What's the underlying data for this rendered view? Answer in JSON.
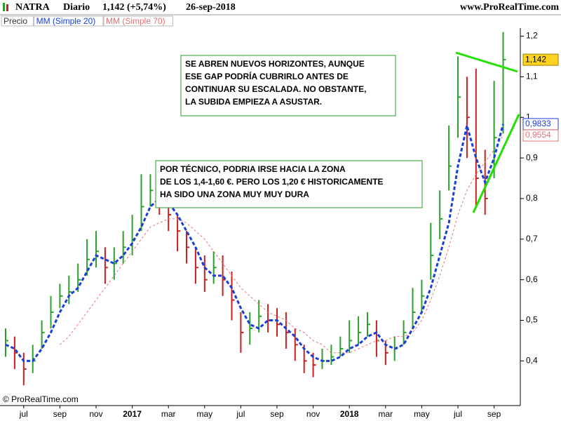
{
  "chart_data": {
    "type": "candlestick",
    "title": "NATRA",
    "period": "Diario",
    "last_change": "1,142 (+5,74%)",
    "date": "26-sep-2018",
    "source": "www.ProRealTime.com",
    "copyright": "© ProRealTime.com",
    "categories": [
      null,
      null,
      "jul",
      null,
      null,
      null,
      "sep",
      null,
      null,
      null,
      "nov",
      null,
      null,
      null,
      "2017",
      null,
      null,
      null,
      "mar",
      null,
      null,
      null,
      "may",
      null,
      null,
      null,
      "jul",
      null,
      null,
      null,
      "sep",
      null,
      null,
      null,
      "nov",
      null,
      null,
      null,
      "2018",
      null,
      null,
      null,
      "mar",
      null,
      null,
      null,
      "may",
      null,
      null,
      null,
      "jul",
      null,
      null,
      null,
      "sep",
      null
    ],
    "series": [
      {
        "name": "Precio",
        "up_color": "#2ca02c",
        "down_color": "#cc1f1f",
        "high": [
          0.48,
          0.46,
          0.42,
          0.44,
          0.5,
          0.56,
          0.59,
          0.61,
          0.64,
          0.7,
          0.72,
          0.68,
          0.68,
          0.72,
          0.76,
          0.86,
          0.86,
          0.84,
          0.8,
          0.76,
          0.72,
          0.68,
          0.66,
          0.67,
          0.66,
          0.62,
          0.52,
          0.52,
          0.55,
          0.54,
          0.53,
          0.52,
          0.48,
          0.44,
          0.42,
          0.43,
          0.44,
          0.46,
          0.5,
          0.51,
          0.52,
          0.5,
          0.45,
          0.46,
          0.5,
          0.58,
          0.6,
          0.74,
          0.82,
          0.98,
          1.15,
          1.1,
          1.12,
          0.92,
          1.09,
          1.21
        ],
        "low": [
          0.41,
          0.38,
          0.34,
          0.37,
          0.43,
          0.48,
          0.53,
          0.54,
          0.57,
          0.61,
          0.63,
          0.59,
          0.6,
          0.64,
          0.66,
          0.72,
          0.78,
          0.76,
          0.72,
          0.67,
          0.64,
          0.59,
          0.57,
          0.59,
          0.56,
          0.5,
          0.42,
          0.44,
          0.47,
          0.47,
          0.46,
          0.43,
          0.4,
          0.37,
          0.36,
          0.38,
          0.39,
          0.41,
          0.42,
          0.44,
          0.46,
          0.41,
          0.39,
          0.4,
          0.44,
          0.48,
          0.52,
          0.6,
          0.7,
          0.82,
          0.95,
          0.9,
          0.78,
          0.76,
          0.85,
          0.96
        ],
        "values": [
          0.45,
          0.42,
          0.38,
          0.4,
          0.47,
          0.52,
          0.56,
          0.57,
          0.6,
          0.65,
          0.67,
          0.63,
          0.64,
          0.68,
          0.7,
          0.78,
          0.82,
          0.8,
          0.76,
          0.72,
          0.68,
          0.63,
          0.6,
          0.63,
          0.6,
          0.55,
          0.47,
          0.48,
          0.51,
          0.5,
          0.49,
          0.47,
          0.44,
          0.4,
          0.39,
          0.4,
          0.41,
          0.43,
          0.45,
          0.47,
          0.49,
          0.45,
          0.42,
          0.43,
          0.47,
          0.52,
          0.56,
          0.66,
          0.75,
          0.88,
          1.05,
          1.0,
          0.85,
          0.8,
          0.95,
          1.142
        ],
        "value_labels": [
          null,
          null,
          null,
          null,
          null,
          null,
          null,
          null,
          null,
          null,
          null,
          null,
          null,
          null,
          null,
          null,
          null,
          null,
          null,
          null,
          null,
          null,
          null,
          null,
          null,
          null,
          null,
          null,
          null,
          null,
          null,
          null,
          null,
          null,
          null,
          null,
          null,
          null,
          null,
          null,
          null,
          null,
          null,
          null,
          null,
          null,
          null,
          null,
          null,
          null,
          null,
          null,
          null,
          null,
          null,
          "1,142"
        ],
        "tag_color": "#ffd320"
      },
      {
        "name": "MM (Simple 20)",
        "color": "#1a3ed6",
        "values": [
          0.44,
          0.43,
          0.4,
          0.4,
          0.43,
          0.47,
          0.52,
          0.56,
          0.58,
          0.62,
          0.66,
          0.65,
          0.64,
          0.66,
          0.69,
          0.73,
          0.78,
          0.8,
          0.79,
          0.76,
          0.72,
          0.68,
          0.63,
          0.61,
          0.61,
          0.58,
          0.53,
          0.49,
          0.48,
          0.5,
          0.5,
          0.48,
          0.46,
          0.43,
          0.41,
          0.4,
          0.4,
          0.41,
          0.43,
          0.44,
          0.46,
          0.47,
          0.44,
          0.43,
          0.44,
          0.48,
          0.52,
          0.58,
          0.66,
          0.74,
          0.88,
          0.98,
          0.9,
          0.84,
          0.9,
          0.9833
        ],
        "value_labels": [
          null,
          null,
          null,
          null,
          null,
          null,
          null,
          null,
          null,
          null,
          null,
          null,
          null,
          null,
          null,
          null,
          null,
          null,
          null,
          null,
          null,
          null,
          null,
          null,
          null,
          null,
          null,
          null,
          null,
          null,
          null,
          null,
          null,
          null,
          null,
          null,
          null,
          null,
          null,
          null,
          null,
          null,
          null,
          null,
          null,
          null,
          null,
          null,
          null,
          null,
          null,
          null,
          null,
          null,
          null,
          "0,9833"
        ]
      },
      {
        "name": "MM (Simple 70)",
        "color": "#e57373",
        "values": [
          null,
          null,
          null,
          null,
          null,
          null,
          0.44,
          0.46,
          0.49,
          0.52,
          0.55,
          0.58,
          0.61,
          0.64,
          0.67,
          0.7,
          0.73,
          0.74,
          0.75,
          0.75,
          0.74,
          0.72,
          0.7,
          0.67,
          0.64,
          0.61,
          0.58,
          0.56,
          0.54,
          0.52,
          0.51,
          0.5,
          0.48,
          0.47,
          0.45,
          0.44,
          0.42,
          0.42,
          0.42,
          0.43,
          0.44,
          0.45,
          0.45,
          0.46,
          0.46,
          0.47,
          0.5,
          0.55,
          0.61,
          0.68,
          0.76,
          0.82,
          0.86,
          0.89,
          0.92,
          0.9554
        ],
        "value_labels": [
          null,
          null,
          null,
          null,
          null,
          null,
          null,
          null,
          null,
          null,
          null,
          null,
          null,
          null,
          null,
          null,
          null,
          null,
          null,
          null,
          null,
          null,
          null,
          null,
          null,
          null,
          null,
          null,
          null,
          null,
          null,
          null,
          null,
          null,
          null,
          null,
          null,
          null,
          null,
          null,
          null,
          null,
          null,
          null,
          null,
          null,
          null,
          null,
          null,
          null,
          null,
          null,
          null,
          null,
          null,
          "0,9554"
        ]
      }
    ],
    "ylim": [
      0.29,
      1.22
    ],
    "yticks": [
      {
        "value": 0.4,
        "label": "0,4"
      },
      {
        "value": 0.5,
        "label": "0,5"
      },
      {
        "value": 0.6,
        "label": "0,6"
      },
      {
        "value": 0.7,
        "label": "0,7"
      },
      {
        "value": 0.8,
        "label": "0,8"
      },
      {
        "value": 0.9,
        "label": "0,9"
      },
      {
        "value": 1,
        "label": "1"
      },
      {
        "value": 1.1,
        "label": "1,1"
      },
      {
        "value": 1.2,
        "label": "1,2"
      }
    ],
    "annotations": [
      [
        "SE ABREN NUEVOS HORIZONTES, AUNQUE",
        "ESE GAP PODRÍA CUBRIRLO ANTES DE",
        "CONTINUAR SU ESCALADA. NO OBSTANTE,",
        "LA SUBIDA EMPIEZA A ASUSTAR."
      ],
      [
        "POR TÉCNICO, PODRIA IRSE HACIA LA ZONA",
        "DE LOS 1,4-1,60 €. PERO LOS 1,20 € HISTORICAMENTE",
        "HA SIDO UNA ZONA MUY MUY DURA"
      ]
    ]
  }
}
